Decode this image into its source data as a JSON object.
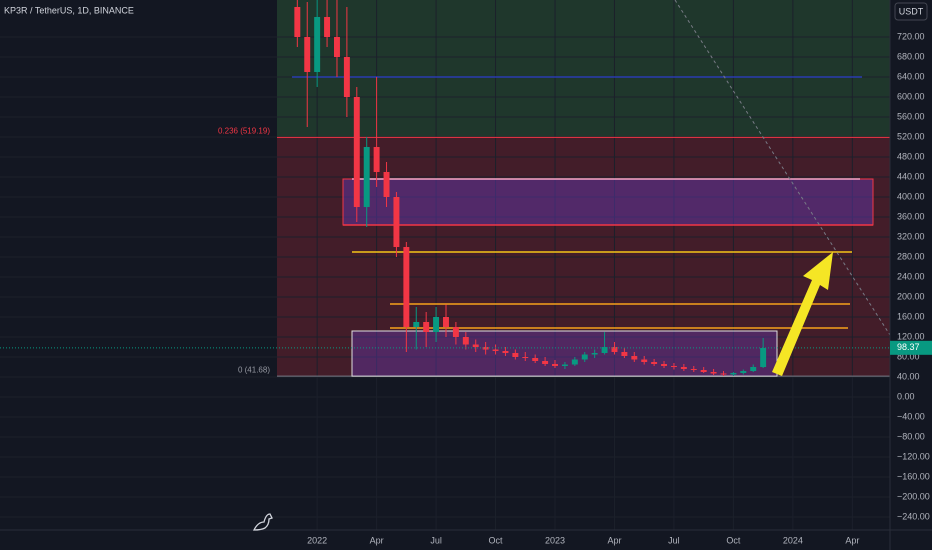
{
  "chart_data": {
    "type": "candlestick",
    "title": "KP3R / TetherUS, 1D, BINANCE",
    "currency": "USDT",
    "x": [
      -1,
      -0.5,
      0,
      0.5,
      1,
      1.5,
      2,
      2.5,
      3,
      3.5,
      4,
      4.5,
      5,
      5.5,
      6,
      6.5,
      7,
      7.5,
      8,
      8.5,
      9,
      9.5,
      10,
      10.5,
      11,
      11.5,
      12,
      12.5,
      13,
      13.5,
      14,
      14.5,
      15,
      15.5,
      16,
      16.5,
      17,
      17.5,
      18,
      18.5,
      19,
      19.5,
      20,
      20.5,
      21,
      21.5,
      22,
      22.5
    ],
    "open": [
      780,
      720,
      650,
      760,
      720,
      680,
      600,
      380,
      500,
      450,
      400,
      300,
      140,
      150,
      130,
      160,
      140,
      120,
      105,
      100,
      95,
      92,
      88,
      80,
      78,
      72,
      66,
      62,
      65,
      75,
      85,
      88,
      100,
      90,
      82,
      75,
      70,
      66,
      62,
      60,
      56,
      54,
      50,
      47,
      45,
      48,
      52,
      60
    ],
    "high": [
      900,
      790,
      800,
      830,
      810,
      780,
      620,
      520,
      640,
      470,
      410,
      310,
      180,
      170,
      180,
      185,
      150,
      130,
      115,
      110,
      105,
      100,
      95,
      90,
      85,
      80,
      74,
      70,
      80,
      90,
      95,
      130,
      110,
      98,
      90,
      82,
      76,
      72,
      68,
      66,
      62,
      60,
      56,
      52,
      50,
      55,
      65,
      118
    ],
    "low": [
      700,
      540,
      620,
      700,
      640,
      560,
      350,
      340,
      420,
      380,
      280,
      90,
      95,
      100,
      110,
      120,
      105,
      95,
      90,
      85,
      85,
      82,
      75,
      72,
      68,
      62,
      58,
      56,
      62,
      70,
      78,
      85,
      85,
      78,
      70,
      65,
      62,
      58,
      55,
      52,
      50,
      48,
      44,
      42,
      42,
      45,
      50,
      58
    ],
    "close": [
      720,
      650,
      760,
      720,
      680,
      600,
      380,
      500,
      450,
      400,
      300,
      140,
      150,
      130,
      160,
      140,
      120,
      105,
      100,
      95,
      92,
      88,
      80,
      78,
      72,
      66,
      62,
      65,
      75,
      85,
      88,
      100,
      90,
      82,
      75,
      70,
      66,
      62,
      60,
      56,
      54,
      50,
      47,
      45,
      48,
      52,
      60,
      98
    ],
    "up_color": "#089981",
    "down_color": "#f23645",
    "last_price": {
      "value": 98.37,
      "label": "98.37"
    },
    "fib_levels": [
      {
        "value": 519.19,
        "label": "0.236 (519.19)"
      },
      {
        "value": 41.68,
        "label": "0 (41.68)"
      }
    ],
    "levels": [
      {
        "value": 640,
        "color": "#2a3bb0"
      },
      {
        "value": 436,
        "color": "#f7a6c6"
      },
      {
        "value": 344,
        "color": "#f23645"
      },
      {
        "value": 290,
        "color": "#f5c518"
      },
      {
        "value": 186,
        "color": "#f7a21b"
      },
      {
        "value": 138,
        "color": "#f7a21b"
      }
    ],
    "xlim": [
      -16,
      28.9
    ],
    "xticks": [
      {
        "value": 0,
        "label": "2022"
      },
      {
        "value": 3,
        "label": "Apr"
      },
      {
        "value": 6,
        "label": "Jul"
      },
      {
        "value": 9,
        "label": "Oct"
      },
      {
        "value": 12,
        "label": "2023"
      },
      {
        "value": 15,
        "label": "Apr"
      },
      {
        "value": 18,
        "label": "Jul"
      },
      {
        "value": 21,
        "label": "Oct"
      },
      {
        "value": 24,
        "label": "2024"
      },
      {
        "value": 27,
        "label": "Apr"
      }
    ],
    "ylim": [
      -266,
      794
    ],
    "yticks": [
      {
        "value": 720,
        "label": "720.00"
      },
      {
        "value": 680,
        "label": "680.00"
      },
      {
        "value": 640,
        "label": "640.00"
      },
      {
        "value": 600,
        "label": "600.00"
      },
      {
        "value": 560,
        "label": "560.00"
      },
      {
        "value": 520,
        "label": "520.00"
      },
      {
        "value": 480,
        "label": "480.00"
      },
      {
        "value": 440,
        "label": "440.00"
      },
      {
        "value": 400,
        "label": "400.00"
      },
      {
        "value": 360,
        "label": "360.00"
      },
      {
        "value": 320,
        "label": "320.00"
      },
      {
        "value": 280,
        "label": "280.00"
      },
      {
        "value": 240,
        "label": "240.00"
      },
      {
        "value": 200,
        "label": "200.00"
      },
      {
        "value": 160,
        "label": "160.00"
      },
      {
        "value": 120,
        "label": "120.00"
      },
      {
        "value": 80,
        "label": "80.00"
      },
      {
        "value": 40,
        "label": "40.00"
      },
      {
        "value": 0,
        "label": "0.00"
      },
      {
        "value": -40,
        "label": "−40.00"
      },
      {
        "value": -80,
        "label": "−80.00"
      },
      {
        "value": -120,
        "label": "−120.00"
      },
      {
        "value": -160,
        "label": "−160.00"
      },
      {
        "value": -200,
        "label": "−200.00"
      },
      {
        "value": -240,
        "label": "−240.00"
      }
    ],
    "grid": true
  }
}
